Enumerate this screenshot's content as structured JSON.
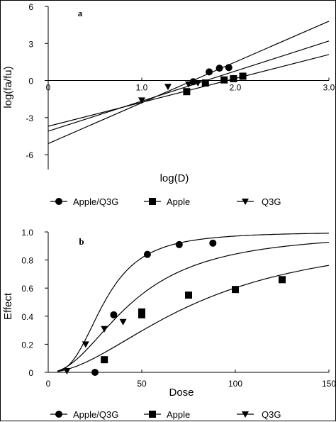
{
  "chart_data": [
    {
      "type": "line",
      "panel_label": "a",
      "xlabel": "log(D)",
      "ylabel": "log(fa/fu)",
      "xlim": [
        0,
        3.0
      ],
      "ylim": [
        -7.2,
        6
      ],
      "x_ticks": [
        {
          "value": 0,
          "label": "0"
        },
        {
          "value": 1,
          "label": "1.0"
        },
        {
          "value": 2,
          "label": "2.0"
        },
        {
          "value": 3,
          "label": "3.0"
        }
      ],
      "y_ticks": [
        {
          "value": 6,
          "label": "6"
        },
        {
          "value": 3,
          "label": "3"
        },
        {
          "value": 0,
          "label": "0"
        },
        {
          "value": -3,
          "label": "-3"
        },
        {
          "value": -6,
          "label": "-6"
        }
      ],
      "series": [
        {
          "name": "Apple/Q3G",
          "marker": "circle",
          "points": [
            [
              1.55,
              -0.1
            ],
            [
              1.72,
              0.7
            ],
            [
              1.83,
              1.0
            ],
            [
              1.93,
              1.05
            ]
          ],
          "fit": [
            [
              0,
              -5.1
            ],
            [
              3.0,
              4.8
            ]
          ]
        },
        {
          "name": "Apple",
          "marker": "square",
          "points": [
            [
              1.48,
              -0.9
            ],
            [
              1.68,
              -0.2
            ],
            [
              1.88,
              0.05
            ],
            [
              1.98,
              0.15
            ],
            [
              2.08,
              0.35
            ]
          ],
          "fit": [
            [
              0,
              -3.7
            ],
            [
              3.0,
              2.1
            ]
          ]
        },
        {
          "name": "Q3G",
          "marker": "triangle-down",
          "points": [
            [
              1.0,
              -1.6
            ],
            [
              1.28,
              -0.5
            ],
            [
              1.5,
              -0.3
            ],
            [
              1.6,
              -0.2
            ]
          ],
          "fit": [
            [
              0,
              -4.1
            ],
            [
              3.0,
              3.2
            ]
          ]
        }
      ],
      "legend": {
        "position": "bottom",
        "entries": [
          {
            "label": "Apple/Q3G",
            "marker": "circle"
          },
          {
            "label": "Apple",
            "marker": "square"
          },
          {
            "label": "Q3G",
            "marker": "triangle-down"
          }
        ]
      }
    },
    {
      "type": "line",
      "panel_label": "b",
      "xlabel": "Dose",
      "ylabel": "Effect",
      "xlim": [
        0,
        150
      ],
      "ylim": [
        0,
        1.0
      ],
      "x_ticks": [
        {
          "value": 0,
          "label": "0"
        },
        {
          "value": 50,
          "label": "50"
        },
        {
          "value": 100,
          "label": "100"
        },
        {
          "value": 150,
          "label": "150"
        }
      ],
      "y_ticks": [
        {
          "value": 0,
          "label": "0"
        },
        {
          "value": 0.2,
          "label": "0.2"
        },
        {
          "value": 0.4,
          "label": "0.4"
        },
        {
          "value": 0.6,
          "label": "0.6"
        },
        {
          "value": 0.8,
          "label": "0.8"
        },
        {
          "value": 1.0,
          "label": "1.0"
        }
      ],
      "series": [
        {
          "name": "Apple/Q3G",
          "marker": "circle",
          "points": [
            [
              25,
              0.0
            ],
            [
              35,
              0.41
            ],
            [
              53,
              0.84
            ],
            [
              70,
              0.91
            ],
            [
              88,
              0.92
            ]
          ],
          "fit_model": {
            "dm": 30,
            "m": 2.9
          }
        },
        {
          "name": "Apple",
          "marker": "square",
          "points": [
            [
              30,
              0.09
            ],
            [
              50,
              0.41
            ],
            [
              50,
              0.43
            ],
            [
              75,
              0.55
            ],
            [
              100,
              0.59
            ],
            [
              125,
              0.66
            ]
          ],
          "fit_model": {
            "dm": 80,
            "m": 1.85
          }
        },
        {
          "name": "Q3G",
          "marker": "triangle-down",
          "points": [
            [
              10,
              0.01
            ],
            [
              20,
              0.2
            ],
            [
              30,
              0.31
            ],
            [
              40,
              0.36
            ]
          ],
          "fit_model": {
            "dm": 45,
            "m": 2.1
          }
        }
      ],
      "legend": {
        "position": "bottom",
        "entries": [
          {
            "label": "Apple/Q3G",
            "marker": "circle"
          },
          {
            "label": "Apple",
            "marker": "square"
          },
          {
            "label": "Q3G",
            "marker": "triangle-down"
          }
        ]
      }
    }
  ]
}
